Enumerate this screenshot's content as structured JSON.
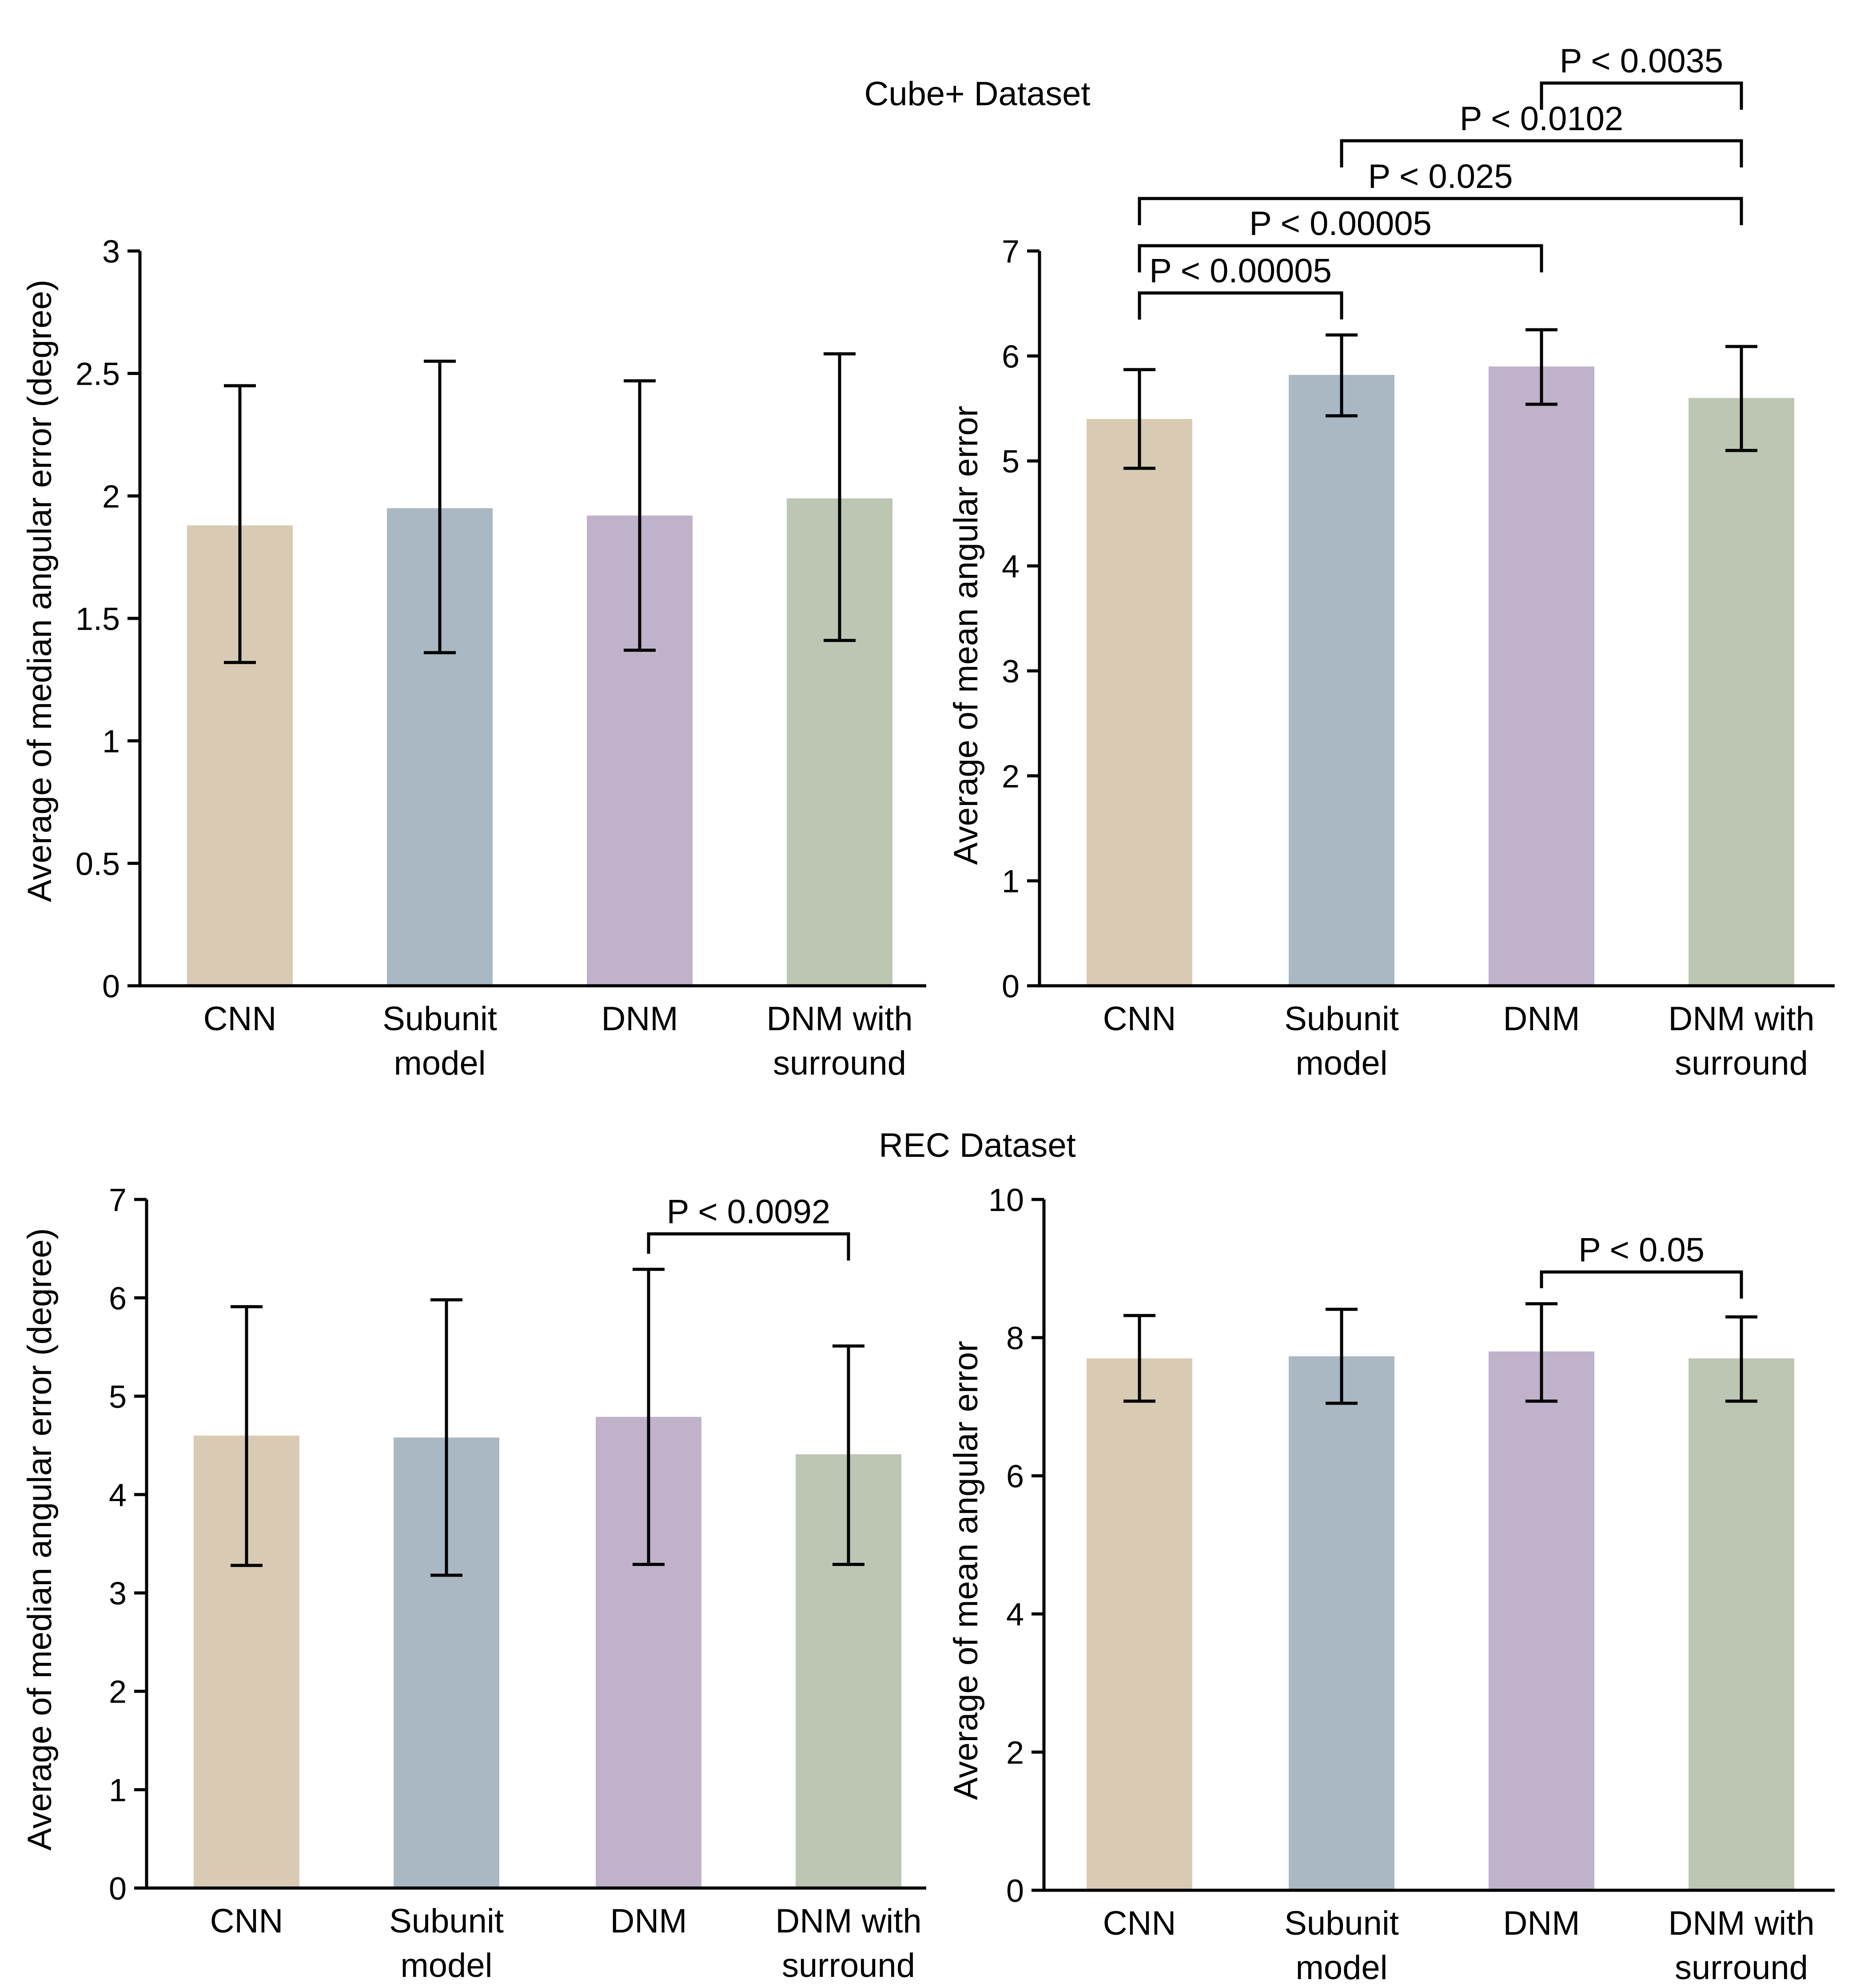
{
  "figure": {
    "section_titles": [
      "Cube+ Dataset",
      "REC Dataset"
    ]
  },
  "colors": {
    "CNN": "#d9cbb3",
    "Subunit model": "#aab8c3",
    "DNM": "#c0b2ca",
    "DNM with surround": "#bdc6b3",
    "axis": "#000000"
  },
  "chart_data": [
    {
      "type": "bar",
      "section": "Cube+ Dataset",
      "categories": [
        "CNN",
        "Subunit model",
        "DNM",
        "DNM with surround"
      ],
      "category_lines": [
        [
          "CNN"
        ],
        [
          "Subunit",
          "model"
        ],
        [
          "DNM"
        ],
        [
          "DNM with",
          "surround"
        ]
      ],
      "values": [
        1.88,
        1.95,
        1.92,
        1.99
      ],
      "error_low": [
        1.32,
        1.36,
        1.37,
        1.41
      ],
      "error_high": [
        2.45,
        2.55,
        2.47,
        2.58
      ],
      "xlabel": "",
      "ylabel": "Average of median angular error (degree)",
      "ylim": [
        0,
        3
      ],
      "yticks": [
        0,
        0.5,
        1,
        1.5,
        2,
        2.5,
        3
      ],
      "ytick_labels": [
        "0",
        "0.5",
        "1",
        "1.5",
        "2",
        "2.5",
        "3"
      ],
      "significance": []
    },
    {
      "type": "bar",
      "section": "Cube+ Dataset",
      "categories": [
        "CNN",
        "Subunit model",
        "DNM",
        "DNM with surround"
      ],
      "category_lines": [
        [
          "CNN"
        ],
        [
          "Subunit",
          "model"
        ],
        [
          "DNM"
        ],
        [
          "DNM with",
          "surround"
        ]
      ],
      "values": [
        5.4,
        5.82,
        5.9,
        5.6
      ],
      "error_low": [
        4.93,
        5.43,
        5.54,
        5.1
      ],
      "error_high": [
        5.87,
        6.2,
        6.25,
        6.09
      ],
      "xlabel": "",
      "ylabel": "Average of mean angular error",
      "ylim": [
        0,
        7
      ],
      "yticks": [
        0,
        1,
        2,
        3,
        4,
        5,
        6,
        7
      ],
      "ytick_labels": [
        "0",
        "1",
        "2",
        "3",
        "4",
        "5",
        "6",
        "7"
      ],
      "significance": [
        {
          "from": 0,
          "to": 1,
          "label": "P < 0.00005",
          "level": 6.6
        },
        {
          "from": 0,
          "to": 2,
          "label": "P < 0.00005",
          "level": 7.05
        },
        {
          "from": 0,
          "to": 3,
          "label": "P < 0.025",
          "level": 7.5
        },
        {
          "from": 1,
          "to": 3,
          "label": "P < 0.0102",
          "level": 8.05
        },
        {
          "from": 2,
          "to": 3,
          "label": "P < 0.0035",
          "level": 8.6
        }
      ]
    },
    {
      "type": "bar",
      "section": "REC Dataset",
      "categories": [
        "CNN",
        "Subunit model",
        "DNM",
        "DNM with surround"
      ],
      "category_lines": [
        [
          "CNN"
        ],
        [
          "Subunit",
          "model"
        ],
        [
          "DNM"
        ],
        [
          "DNM with",
          "surround"
        ]
      ],
      "values": [
        4.6,
        4.58,
        4.79,
        4.41
      ],
      "error_low": [
        3.28,
        3.18,
        3.29,
        3.29
      ],
      "error_high": [
        5.91,
        5.98,
        6.29,
        5.51
      ],
      "xlabel": "",
      "ylabel": "Average of median angular error (degree)",
      "ylim": [
        0,
        7
      ],
      "yticks": [
        0,
        1,
        2,
        3,
        4,
        5,
        6,
        7
      ],
      "ytick_labels": [
        "0",
        "1",
        "2",
        "3",
        "4",
        "5",
        "6",
        "7"
      ],
      "significance": [
        {
          "from": 2,
          "to": 3,
          "label": "P < 0.0092",
          "level": 6.65
        }
      ]
    },
    {
      "type": "bar",
      "section": "REC Dataset",
      "categories": [
        "CNN",
        "Subunit model",
        "DNM",
        "DNM with surround"
      ],
      "category_lines": [
        [
          "CNN"
        ],
        [
          "Subunit",
          "model"
        ],
        [
          "DNM"
        ],
        [
          "DNM with",
          "surround"
        ]
      ],
      "values": [
        7.7,
        7.73,
        7.8,
        7.7
      ],
      "error_low": [
        7.08,
        7.05,
        7.08,
        7.08
      ],
      "error_high": [
        8.32,
        8.41,
        8.49,
        8.3
      ],
      "xlabel": "",
      "ylabel": "Average of mean angular error",
      "ylim": [
        0,
        10
      ],
      "yticks": [
        0,
        2,
        4,
        6,
        8,
        10
      ],
      "ytick_labels": [
        "0",
        "2",
        "4",
        "6",
        "8",
        "10"
      ],
      "significance": [
        {
          "from": 2,
          "to": 3,
          "label": "P < 0.05",
          "level": 8.95
        }
      ]
    }
  ]
}
